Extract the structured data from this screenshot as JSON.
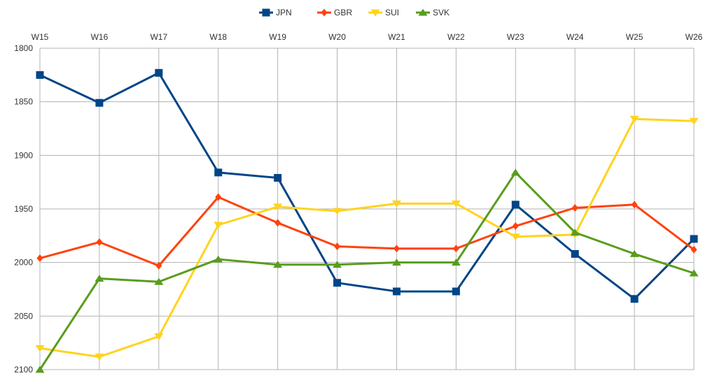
{
  "chart_data": {
    "type": "line",
    "title": "",
    "xlabel": "",
    "ylabel": "",
    "categories": [
      "W15",
      "W16",
      "W17",
      "W18",
      "W19",
      "W20",
      "W21",
      "W22",
      "W23",
      "W24",
      "W25",
      "W26"
    ],
    "ylim": [
      1800,
      2100
    ],
    "y_inverted": true,
    "yticks": [
      1800,
      1850,
      1900,
      1950,
      2000,
      2050,
      2100
    ],
    "grid": true,
    "legend_position": "top-center",
    "series": [
      {
        "name": "JPN",
        "color": "#004586",
        "marker": "square",
        "values": [
          1825,
          1851,
          1823,
          1916,
          1921,
          2019,
          2027,
          2027,
          1946,
          1992,
          2034,
          1978
        ]
      },
      {
        "name": "GBR",
        "color": "#ff420e",
        "marker": "diamond",
        "values": [
          1996,
          1981,
          2003,
          1939,
          1963,
          1985,
          1987,
          1987,
          1966,
          1949,
          1946,
          1988
        ]
      },
      {
        "name": "SUI",
        "color": "#ffd320",
        "marker": "triangle-down",
        "values": [
          2080,
          2088,
          2069,
          1965,
          1948,
          1952,
          1945,
          1945,
          1976,
          1974,
          1866,
          1868
        ]
      },
      {
        "name": "SVK",
        "color": "#579d1c",
        "marker": "triangle-up",
        "values": [
          2100,
          2015,
          2018,
          1997,
          2002,
          2002,
          2000,
          2000,
          1916,
          1972,
          1992,
          2010
        ]
      }
    ]
  }
}
